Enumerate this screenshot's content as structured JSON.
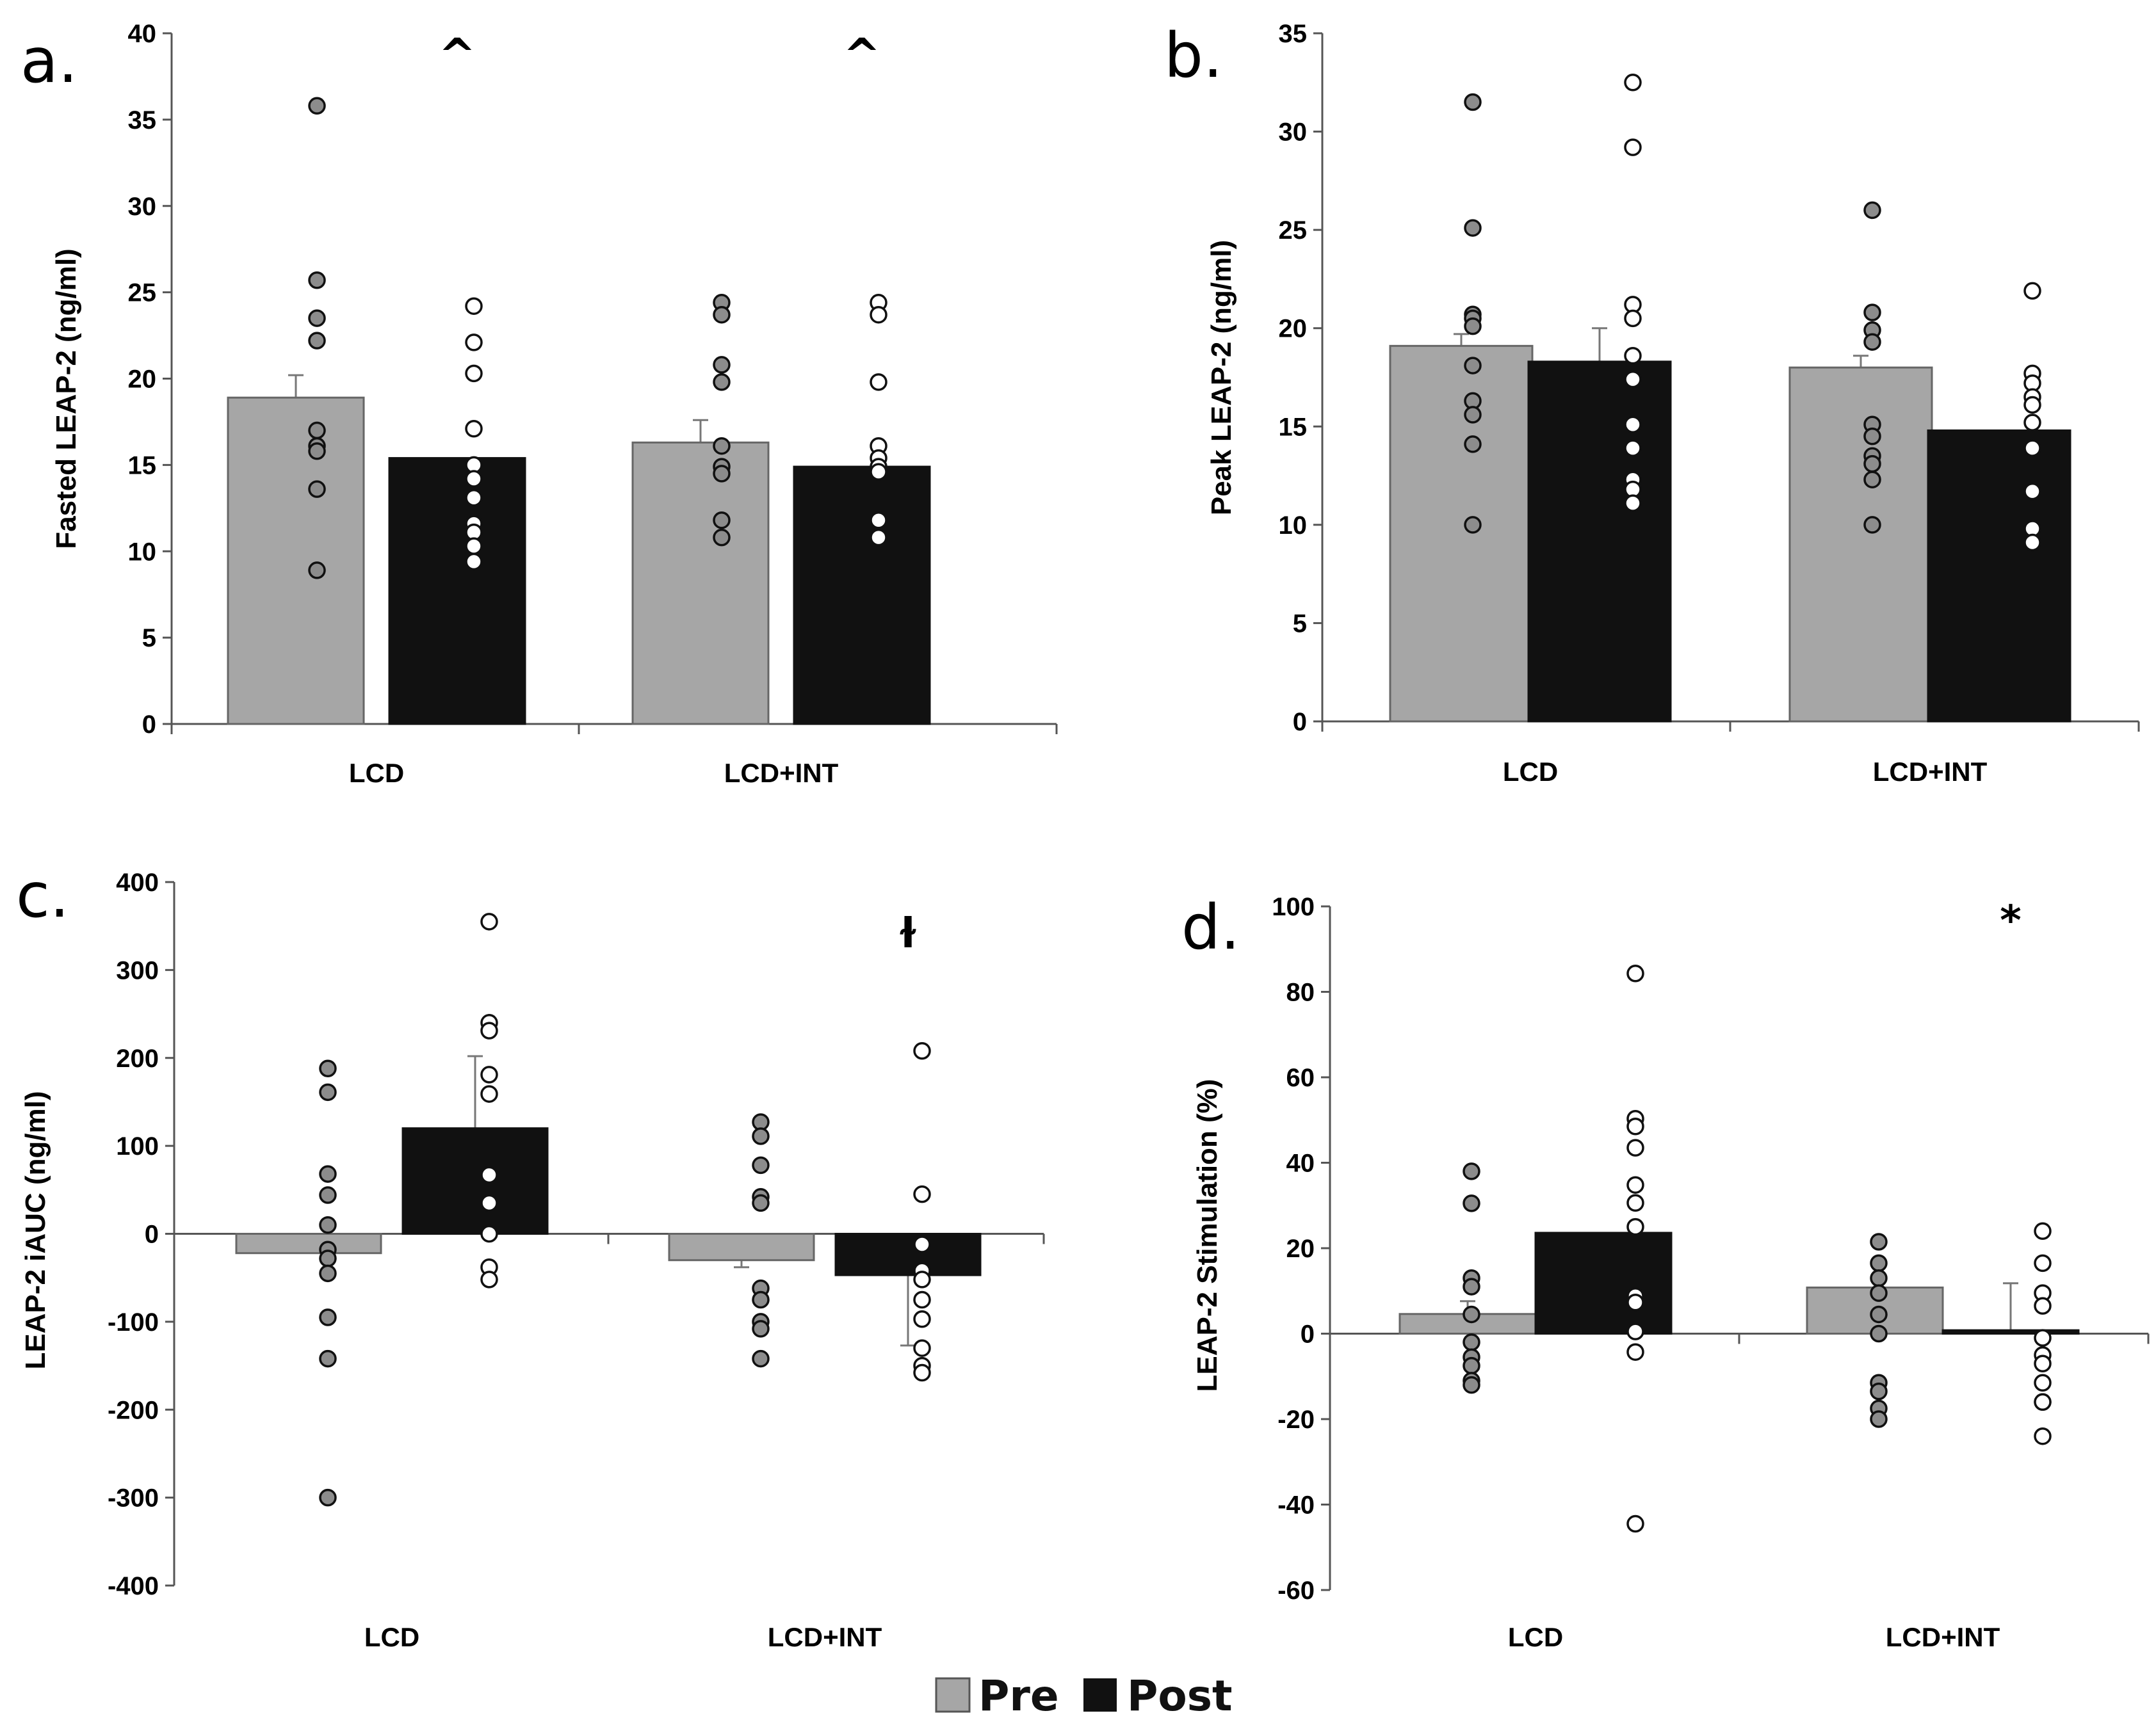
{
  "legend": {
    "items": [
      {
        "label": "Pre",
        "color": "#a6a6a6"
      },
      {
        "label": "Post",
        "color": "#111111"
      }
    ]
  },
  "colors": {
    "pre": "#a6a6a6",
    "post": "#111111",
    "pre_point": "#8c8c8c",
    "post_point": "#ffffff"
  },
  "chart_data": [
    {
      "panel": "a.",
      "type": "bar",
      "ylabel": "Fasted LEAP-2 (ng/ml)",
      "ylim": [
        0,
        40
      ],
      "yticks": [
        0,
        5,
        10,
        15,
        20,
        25,
        30,
        35,
        40
      ],
      "categories": [
        "LCD",
        "LCD+INT"
      ],
      "series": [
        {
          "name": "Pre",
          "values": [
            18.9,
            16.3
          ],
          "errors": [
            1.3,
            1.3
          ],
          "points": [
            [
              35.8,
              25.7,
              23.5,
              22.2,
              17.0,
              16.1,
              15.8,
              13.6,
              8.9
            ],
            [
              24.4,
              23.7,
              20.8,
              19.8,
              16.1,
              14.9,
              14.5,
              11.8,
              10.8
            ]
          ]
        },
        {
          "name": "Post",
          "values": [
            15.4,
            14.9
          ],
          "errors": [
            0,
            0
          ],
          "points": [
            [
              24.2,
              22.1,
              20.3,
              17.1,
              15.0,
              14.2,
              13.1,
              11.6,
              11.1,
              10.3,
              9.4
            ],
            [
              24.4,
              23.7,
              19.8,
              16.1,
              15.4,
              14.9,
              14.6,
              11.8,
              10.8
            ]
          ]
        }
      ],
      "annotations": [
        {
          "category": 0,
          "text": "^"
        },
        {
          "category": 1,
          "text": "^"
        }
      ]
    },
    {
      "panel": "b.",
      "type": "bar",
      "ylabel": "Peak LEAP-2 (ng/ml)",
      "ylim": [
        0,
        35
      ],
      "yticks": [
        0,
        5,
        10,
        15,
        20,
        25,
        30,
        35
      ],
      "categories": [
        "LCD",
        "LCD+INT"
      ],
      "series": [
        {
          "name": "Pre",
          "values": [
            19.1,
            18.0
          ],
          "errors": [
            0.6,
            0.6
          ],
          "points": [
            [
              31.5,
              25.1,
              20.7,
              20.5,
              20.1,
              18.1,
              16.3,
              15.6,
              14.1,
              10.0
            ],
            [
              26.0,
              20.8,
              19.9,
              19.3,
              15.1,
              14.5,
              13.5,
              13.1,
              12.3,
              10.0
            ]
          ]
        },
        {
          "name": "Post",
          "values": [
            18.3,
            14.8
          ],
          "errors": [
            1.7,
            0
          ],
          "points": [
            [
              32.5,
              29.2,
              21.2,
              20.5,
              18.6,
              17.4,
              15.1,
              13.9,
              12.3,
              11.8,
              11.1
            ],
            [
              21.9,
              17.7,
              17.2,
              16.5,
              16.1,
              15.2,
              13.9,
              11.7,
              9.8,
              9.1
            ]
          ]
        }
      ],
      "annotations": []
    },
    {
      "panel": "c.",
      "type": "bar",
      "ylabel": "LEAP-2 iAUC (ng/ml)",
      "ylim": [
        -400,
        400
      ],
      "yticks": [
        -400,
        -300,
        -200,
        -100,
        0,
        100,
        200,
        300,
        400
      ],
      "categories": [
        "LCD",
        "LCD+INT"
      ],
      "series": [
        {
          "name": "Pre",
          "values": [
            -22,
            -30
          ],
          "errors": [
            0,
            8
          ],
          "points": [
            [
              188,
              161,
              68,
              44,
              10,
              -18,
              -28,
              -45,
              -95,
              -142,
              -300
            ],
            [
              127,
              111,
              78,
              42,
              35,
              -62,
              -75,
              -100,
              -108,
              -142
            ]
          ]
        },
        {
          "name": "Post",
          "values": [
            120,
            -47
          ],
          "errors": [
            82,
            80
          ],
          "points": [
            [
              355,
              240,
              231,
              181,
              159,
              67,
              35,
              0,
              -38,
              -52
            ],
            [
              208,
              45,
              -12,
              -42,
              -52,
              -75,
              -97,
              -130,
              -150,
              -158
            ]
          ]
        }
      ],
      "annotations": [
        {
          "category": 1,
          "text": "ɫ"
        }
      ]
    },
    {
      "panel": "d.",
      "type": "bar",
      "ylabel": "LEAP-2 Stimulation (%)",
      "ylim": [
        -60,
        100
      ],
      "yticks": [
        -60,
        -40,
        -20,
        0,
        20,
        40,
        60,
        80,
        100
      ],
      "categories": [
        "LCD",
        "LCD+INT"
      ],
      "series": [
        {
          "name": "Pre",
          "values": [
            4.6,
            10.8
          ],
          "errors": [
            3.0,
            0
          ],
          "points": [
            [
              38.0,
              30.5,
              13.0,
              11.0,
              4.5,
              -2.0,
              -5.5,
              -7.5,
              -11.0,
              -12.0
            ],
            [
              21.5,
              16.5,
              13.0,
              9.5,
              4.5,
              0.0,
              -11.5,
              -13.5,
              -17.5,
              -20.0
            ]
          ]
        },
        {
          "name": "Post",
          "values": [
            23.6,
            0.8
          ],
          "errors": [
            0,
            11.0
          ],
          "points": [
            [
              84.3,
              50.3,
              48.5,
              43.5,
              34.8,
              30.6,
              25.0,
              8.8,
              7.3,
              0.5,
              -4.3,
              -44.5
            ],
            [
              24.0,
              16.5,
              9.5,
              6.5,
              -1.0,
              -5.0,
              -7.0,
              -11.5,
              -16.0,
              -16.0,
              -24.0
            ]
          ]
        }
      ],
      "annotations": [
        {
          "category": 1,
          "text": "*"
        }
      ]
    }
  ]
}
